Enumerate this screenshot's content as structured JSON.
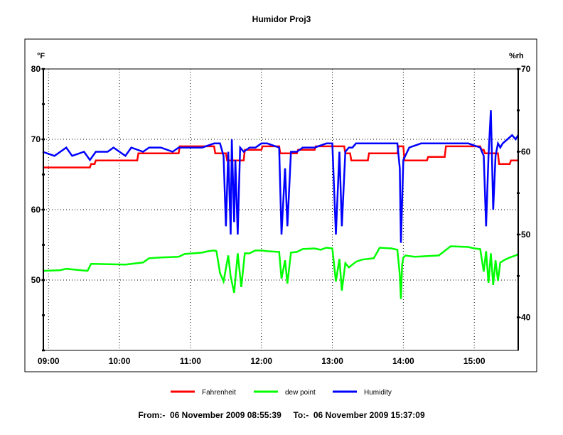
{
  "chart_data": {
    "type": "line",
    "title": "Humidor Proj3",
    "left_unit": "°F",
    "right_unit": "%rh",
    "y_left_range": [
      40,
      80
    ],
    "y_right_range": [
      36,
      70
    ],
    "y_left_ticks": [
      "80",
      "70",
      "60",
      "50"
    ],
    "y_right_ticks": [
      "70",
      "60",
      "50",
      "40"
    ],
    "x_range": [
      "08:55:39",
      "15:37:09"
    ],
    "x_ticks": [
      "09:00",
      "10:00",
      "11:00",
      "12:00",
      "13:00",
      "14:00",
      "15:00"
    ],
    "grid": true,
    "legend_position": "bottom",
    "footer": "From:-  06 November 2009 08:55:39     To:-  06 November 2009 15:37:09",
    "series": [
      {
        "name": "Fahrenheit",
        "color": "#ff0000",
        "axis": "left",
        "x": [
          "08:55",
          "09:35",
          "09:36",
          "09:39",
          "09:40",
          "10:15",
          "10:16",
          "10:50",
          "10:51",
          "11:20",
          "11:21",
          "11:30",
          "11:31",
          "11:45",
          "11:46",
          "12:00",
          "12:01",
          "12:15",
          "12:16",
          "12:30",
          "12:31",
          "12:45",
          "12:46",
          "13:00",
          "13:01",
          "13:10",
          "13:11",
          "13:15",
          "13:16",
          "13:30",
          "13:31",
          "13:55",
          "13:56",
          "14:00",
          "14:01",
          "14:20",
          "14:21",
          "14:35",
          "14:36",
          "15:05",
          "15:06",
          "15:08",
          "15:09",
          "15:20",
          "15:21",
          "15:30",
          "15:31",
          "15:37"
        ],
        "values": [
          66,
          66,
          66.5,
          66.5,
          67,
          67,
          68,
          68,
          69,
          69,
          68,
          68,
          67,
          67,
          68.5,
          68.5,
          69,
          69,
          68,
          68,
          68.5,
          68.5,
          69,
          69,
          69,
          69,
          68,
          68,
          67,
          67,
          68,
          68,
          69,
          69,
          67,
          67,
          67.5,
          67.5,
          69,
          69,
          68.5,
          68.5,
          68,
          68,
          66.5,
          66.5,
          67,
          67
        ]
      },
      {
        "name": "dew point",
        "color": "#00ff00",
        "axis": "left",
        "x": [
          "08:55",
          "09:10",
          "09:15",
          "09:33",
          "09:36",
          "09:38",
          "10:05",
          "10:10",
          "10:20",
          "10:25",
          "10:35",
          "10:50",
          "10:55",
          "11:10",
          "11:15",
          "11:20",
          "11:22",
          "11:25",
          "11:28",
          "11:32",
          "11:34",
          "11:37",
          "11:40",
          "11:43",
          "11:46",
          "11:50",
          "11:55",
          "12:00",
          "12:05",
          "12:15",
          "12:17",
          "12:20",
          "12:22",
          "12:25",
          "12:30",
          "12:35",
          "12:45",
          "12:50",
          "12:55",
          "13:00",
          "13:03",
          "13:06",
          "13:08",
          "13:11",
          "13:14",
          "13:17",
          "13:20",
          "13:25",
          "13:35",
          "13:40",
          "13:50",
          "13:55",
          "13:57",
          "13:58",
          "13:59",
          "14:00",
          "14:02",
          "14:05",
          "14:10",
          "14:30",
          "14:40",
          "14:55",
          "15:00",
          "15:05",
          "15:08",
          "15:10",
          "15:12",
          "15:14",
          "15:16",
          "15:18",
          "15:20",
          "15:22",
          "15:24",
          "15:26",
          "15:30",
          "15:35",
          "15:37"
        ],
        "values": [
          51.3,
          51.4,
          51.6,
          51.3,
          52.3,
          52.3,
          52.2,
          52.3,
          52.5,
          53.1,
          53.2,
          53.3,
          53.7,
          53.9,
          54.1,
          54.2,
          54.1,
          51,
          49.8,
          53.5,
          50.5,
          48.2,
          53.8,
          49,
          53.8,
          53.8,
          54.2,
          54.2,
          54.1,
          54,
          50.2,
          52.8,
          49.5,
          53.9,
          54,
          54.4,
          54.5,
          54.3,
          54.6,
          54.5,
          49.8,
          53,
          48.5,
          52.4,
          51.8,
          52.2,
          52.6,
          52.9,
          53.1,
          54.6,
          54.5,
          54.3,
          50.8,
          47.3,
          52.2,
          53.2,
          53.5,
          53.4,
          53.3,
          53.5,
          54.8,
          54.7,
          54.5,
          54.4,
          51.2,
          54.1,
          49.6,
          53.8,
          49.3,
          52.8,
          49.9,
          52.5,
          52.7,
          52.9,
          53.2,
          53.5,
          53.7
        ]
      },
      {
        "name": "Humidity",
        "color": "#0000ff",
        "axis": "right",
        "x": [
          "08:55",
          "09:05",
          "09:10",
          "09:15",
          "09:20",
          "09:30",
          "09:35",
          "09:40",
          "09:50",
          "09:55",
          "10:00",
          "10:05",
          "10:10",
          "10:20",
          "10:25",
          "10:35",
          "10:45",
          "10:50",
          "11:00",
          "11:10",
          "11:20",
          "11:25",
          "11:28",
          "11:30",
          "11:32",
          "11:34",
          "11:35",
          "11:37",
          "11:38",
          "11:40",
          "11:42",
          "11:45",
          "11:50",
          "11:55",
          "12:00",
          "12:05",
          "12:15",
          "12:17",
          "12:20",
          "12:22",
          "12:25",
          "12:30",
          "12:35",
          "12:45",
          "12:55",
          "13:00",
          "13:03",
          "13:06",
          "13:08",
          "13:11",
          "13:14",
          "13:17",
          "13:20",
          "13:30",
          "13:40",
          "13:55",
          "13:57",
          "13:58",
          "13:59",
          "14:00",
          "14:05",
          "14:15",
          "14:25",
          "14:35",
          "14:45",
          "14:55",
          "15:05",
          "15:08",
          "15:10",
          "15:12",
          "15:14",
          "15:16",
          "15:18",
          "15:20",
          "15:22",
          "15:24",
          "15:28",
          "15:32",
          "15:35",
          "15:37"
        ],
        "values": [
          60,
          59.5,
          60,
          60.5,
          59.5,
          60,
          59,
          60,
          60,
          60.5,
          60,
          59.5,
          60.5,
          60,
          60.5,
          60.5,
          60,
          60.5,
          60.5,
          60.5,
          61,
          61,
          59.5,
          51,
          60,
          50,
          61.5,
          51.5,
          59,
          50,
          60.5,
          60,
          60.5,
          60.5,
          61,
          61,
          60.5,
          50,
          58,
          51,
          60,
          60,
          60.5,
          60.5,
          61,
          61,
          50,
          60,
          51,
          60,
          60.5,
          60.5,
          61,
          61,
          61,
          61,
          58,
          49,
          54,
          59,
          60.5,
          61,
          61,
          61,
          61,
          61,
          60.5,
          59.5,
          51,
          59.5,
          65,
          53,
          59.5,
          61,
          60.5,
          61,
          61.5,
          62,
          61.5,
          62
        ]
      }
    ]
  }
}
